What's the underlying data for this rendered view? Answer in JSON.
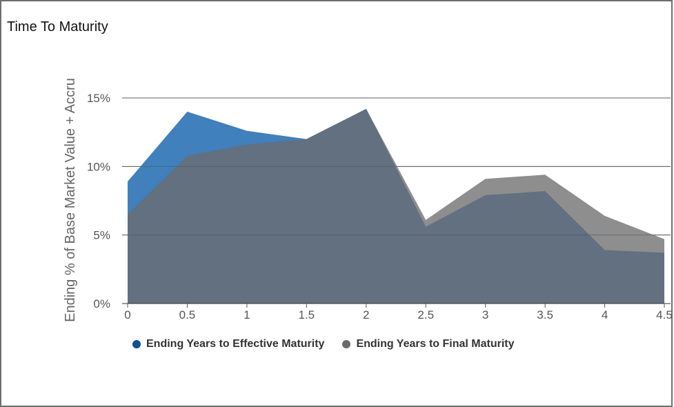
{
  "title": "Time To Maturity",
  "chart_data": {
    "type": "area",
    "title": "Time To Maturity",
    "xlabel": "",
    "ylabel": "Ending % of Base Market Value + Accru",
    "x": [
      0,
      0.5,
      1,
      1.5,
      2,
      2.5,
      3,
      3.5,
      4,
      4.5
    ],
    "x_tick_labels": [
      "0",
      "0.5",
      "1",
      "1.5",
      "2",
      "2.5",
      "3",
      "3.5",
      "4",
      "4.5"
    ],
    "y_tick_labels": [
      "0%",
      "5%",
      "10%",
      "15%"
    ],
    "y_ticks": [
      0,
      5,
      10,
      15
    ],
    "ylim": [
      0,
      15
    ],
    "xlim": [
      0,
      4.5
    ],
    "grid": true,
    "legend_position": "bottom",
    "series": [
      {
        "name": "Ending Years to Effective Maturity",
        "color": "#2c6fad",
        "legend_color": "#0b4f9c",
        "values": [
          8.9,
          14.0,
          12.6,
          12.0,
          14.2,
          5.6,
          7.9,
          8.2,
          3.9,
          3.7
        ]
      },
      {
        "name": "Ending Years to Final Maturity",
        "color": "#7a7a7a",
        "legend_color": "#6b6b6b",
        "values": [
          6.5,
          10.8,
          11.6,
          12.0,
          14.2,
          6.1,
          9.1,
          9.4,
          6.4,
          4.7
        ]
      }
    ]
  }
}
